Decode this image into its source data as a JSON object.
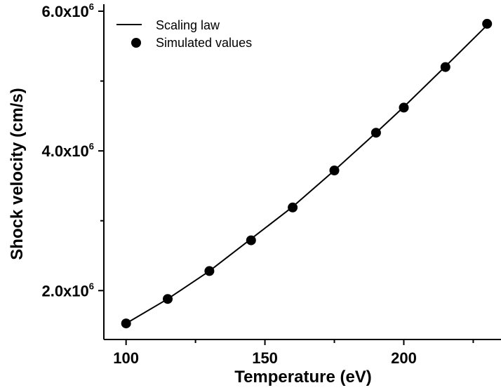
{
  "chart_data": {
    "type": "scatter",
    "xlabel": "Temperature (eV)",
    "ylabel": "Shock velocity (cm/s)",
    "xlim": [
      92,
      235
    ],
    "ylim": [
      1.3,
      6.1
    ],
    "y_scale_factor": 1000000,
    "x_ticks": [
      100,
      150,
      200
    ],
    "y_ticks": [
      {
        "value": 2.0,
        "mantissa": "2.0x10",
        "exponent": "6"
      },
      {
        "value": 4.0,
        "mantissa": "4.0x10",
        "exponent": "6"
      },
      {
        "value": 6.0,
        "mantissa": "6.0x10",
        "exponent": "6"
      }
    ],
    "legend_position": "top-left",
    "series": [
      {
        "name": "Scaling law",
        "kind": "line",
        "x": [
          100,
          115,
          130,
          145,
          160,
          175,
          190,
          200,
          215,
          230
        ],
        "y": [
          1.53,
          1.88,
          2.28,
          2.74,
          3.2,
          3.72,
          4.26,
          4.63,
          5.21,
          5.8
        ]
      },
      {
        "name": "Simulated values",
        "kind": "scatter",
        "x": [
          100,
          115,
          130,
          145,
          160,
          175,
          190,
          200,
          215,
          230
        ],
        "y": [
          1.53,
          1.88,
          2.28,
          2.72,
          3.19,
          3.72,
          4.26,
          4.62,
          5.2,
          5.82
        ]
      }
    ],
    "colors": {
      "line": "#000000",
      "marker": "#000000",
      "axes": "#000000"
    }
  }
}
